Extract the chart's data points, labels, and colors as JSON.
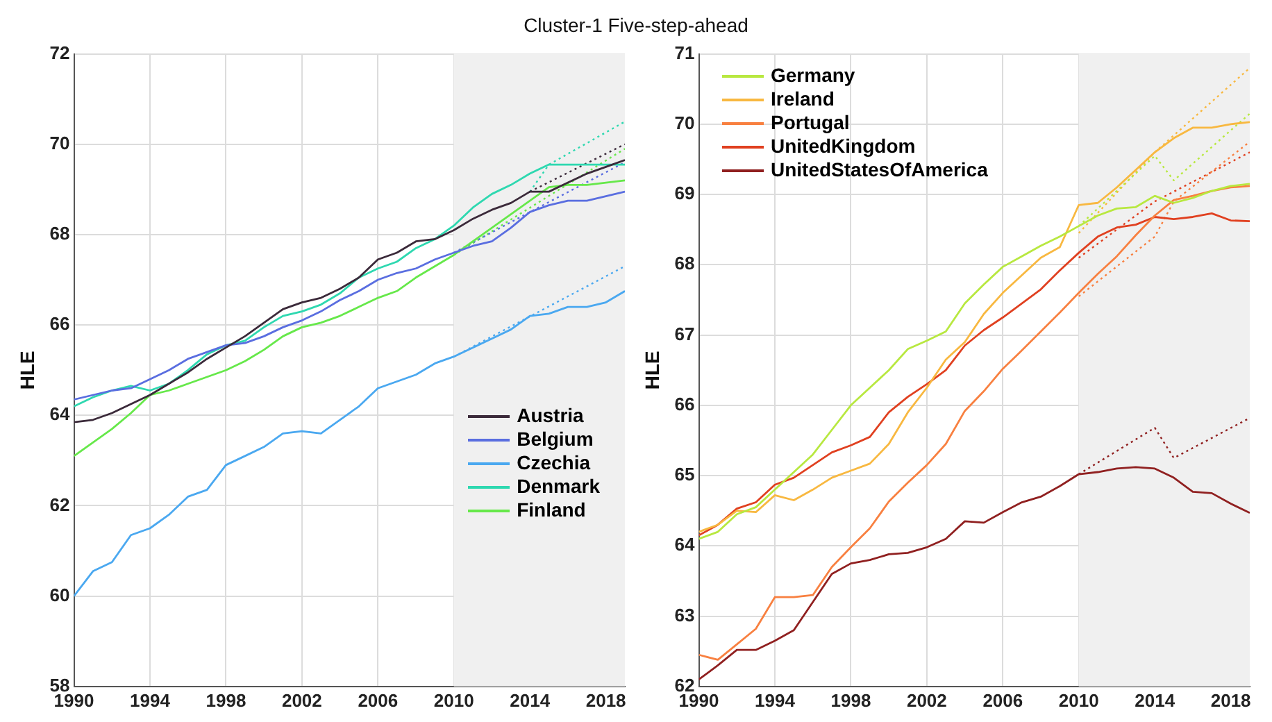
{
  "chart_data": [
    {
      "type": "line",
      "title": "Cluster-1 Five-step-ahead",
      "ylabel": "HLE",
      "x": [
        1990,
        1991,
        1992,
        1993,
        1994,
        1995,
        1996,
        1997,
        1998,
        1999,
        2000,
        2001,
        2002,
        2003,
        2004,
        2005,
        2006,
        2007,
        2008,
        2009,
        2010,
        2011,
        2012,
        2013,
        2014,
        2015,
        2016,
        2017,
        2018,
        2019
      ],
      "xlim": [
        1990,
        2019
      ],
      "xticks": [
        1990,
        1994,
        1998,
        2002,
        2006,
        2010,
        2014,
        2018
      ],
      "ylim": [
        58,
        72
      ],
      "yticks": [
        58,
        60,
        62,
        64,
        66,
        68,
        70,
        72
      ],
      "grid": true,
      "legend": "bottom right",
      "marker": "none",
      "bands": [
        {
          "axis": "x",
          "from": 2010,
          "to": 2019,
          "color": "#f0f0f0"
        }
      ],
      "series": [
        {
          "name": "Austria",
          "color": "#3b2a3a",
          "values": [
            63.85,
            63.9,
            64.05,
            64.25,
            64.45,
            64.7,
            64.95,
            65.25,
            65.5,
            65.75,
            66.05,
            66.35,
            66.5,
            66.6,
            66.8,
            67.05,
            67.45,
            67.6,
            67.85,
            67.9,
            68.1,
            68.35,
            68.55,
            68.7,
            68.95,
            68.95,
            69.15,
            69.35,
            69.5,
            69.65
          ]
        },
        {
          "name": "Belgium",
          "color": "#5a6ee0",
          "values": [
            64.35,
            64.45,
            64.55,
            64.6,
            64.8,
            65.0,
            65.25,
            65.4,
            65.55,
            65.6,
            65.75,
            65.95,
            66.1,
            66.3,
            66.55,
            66.75,
            67.0,
            67.15,
            67.25,
            67.45,
            67.6,
            67.75,
            67.85,
            68.15,
            68.5,
            68.65,
            68.75,
            68.75,
            68.85,
            68.95
          ]
        },
        {
          "name": "Czechia",
          "color": "#4aa8f0",
          "values": [
            60.0,
            60.55,
            60.75,
            61.35,
            61.5,
            61.8,
            62.2,
            62.35,
            62.9,
            63.1,
            63.3,
            63.6,
            63.65,
            63.6,
            63.9,
            64.2,
            64.6,
            64.75,
            64.9,
            65.15,
            65.3,
            65.5,
            65.7,
            65.9,
            66.2,
            66.25,
            66.4,
            66.4,
            66.5,
            66.75
          ]
        },
        {
          "name": "Denmark",
          "color": "#2ed8b0",
          "values": [
            64.2,
            64.4,
            64.55,
            64.65,
            64.55,
            64.7,
            65.0,
            65.35,
            65.55,
            65.65,
            65.95,
            66.2,
            66.3,
            66.45,
            66.7,
            67.05,
            67.25,
            67.4,
            67.7,
            67.9,
            68.2,
            68.6,
            68.9,
            69.1,
            69.35,
            69.55,
            69.55,
            69.55,
            69.55,
            69.55
          ]
        },
        {
          "name": "Finland",
          "color": "#66e84a",
          "values": [
            63.1,
            63.4,
            63.7,
            64.05,
            64.45,
            64.55,
            64.7,
            64.85,
            65.0,
            65.2,
            65.45,
            65.75,
            65.95,
            66.05,
            66.2,
            66.4,
            66.6,
            66.75,
            67.05,
            67.3,
            67.55,
            67.85,
            68.15,
            68.45,
            68.75,
            69.05,
            69.1,
            69.1,
            69.15,
            69.2
          ]
        },
        {
          "color": "#3b2a3a",
          "line_style": "dotted",
          "x": [
            2014,
            2019
          ],
          "values": [
            68.95,
            70.0
          ]
        },
        {
          "color": "#5a6ee0",
          "line_style": "dotted",
          "x": [
            2010,
            2014,
            2019
          ],
          "values": [
            67.6,
            68.5,
            69.6
          ]
        },
        {
          "color": "#4aa8f0",
          "line_style": "dotted",
          "x": [
            2010,
            2019
          ],
          "values": [
            65.3,
            67.3
          ]
        },
        {
          "color": "#2ed8b0",
          "line_style": "dotted",
          "x": [
            2014,
            2015,
            2019
          ],
          "values": [
            68.95,
            69.55,
            70.5
          ]
        },
        {
          "color": "#66e84a",
          "line_style": "dotted",
          "x": [
            2010,
            2019
          ],
          "values": [
            67.55,
            69.9
          ]
        }
      ]
    },
    {
      "type": "line",
      "ylabel": "HLE",
      "x": [
        1990,
        1991,
        1992,
        1993,
        1994,
        1995,
        1996,
        1997,
        1998,
        1999,
        2000,
        2001,
        2002,
        2003,
        2004,
        2005,
        2006,
        2007,
        2008,
        2009,
        2010,
        2011,
        2012,
        2013,
        2014,
        2015,
        2016,
        2017,
        2018,
        2019
      ],
      "xlim": [
        1990,
        2019
      ],
      "xticks": [
        1990,
        1994,
        1998,
        2002,
        2006,
        2010,
        2014,
        2018
      ],
      "ylim": [
        62,
        71
      ],
      "yticks": [
        62,
        63,
        64,
        65,
        66,
        67,
        68,
        69,
        70,
        71
      ],
      "grid": true,
      "legend": "top left",
      "marker": "none",
      "bands": [
        {
          "axis": "x",
          "from": 2010,
          "to": 2019,
          "color": "#f0f0f0"
        }
      ],
      "series": [
        {
          "name": "Germany",
          "color": "#b8e840",
          "values": [
            64.1,
            64.2,
            64.45,
            64.55,
            64.8,
            65.05,
            65.3,
            65.65,
            66.0,
            66.25,
            66.5,
            66.8,
            66.92,
            67.05,
            67.45,
            67.72,
            67.97,
            68.12,
            68.27,
            68.4,
            68.55,
            68.7,
            68.8,
            68.82,
            68.98,
            68.88,
            68.95,
            69.05,
            69.12,
            69.15
          ]
        },
        {
          "name": "Ireland",
          "color": "#f8b840",
          "values": [
            64.2,
            64.3,
            64.5,
            64.48,
            64.72,
            64.65,
            64.8,
            64.97,
            65.07,
            65.17,
            65.45,
            65.9,
            66.25,
            66.65,
            66.9,
            67.3,
            67.6,
            67.85,
            68.1,
            68.25,
            68.85,
            68.88,
            69.1,
            69.35,
            69.6,
            69.8,
            69.95,
            69.95,
            70.0,
            70.03
          ]
        },
        {
          "name": "Portugal",
          "color": "#f88040",
          "values": [
            62.45,
            62.38,
            62.6,
            62.82,
            63.27,
            63.27,
            63.3,
            63.7,
            63.98,
            64.25,
            64.63,
            64.9,
            65.15,
            65.45,
            65.92,
            66.2,
            66.52,
            66.78,
            67.05,
            67.32,
            67.6,
            67.87,
            68.12,
            68.42,
            68.7,
            68.92,
            68.98,
            69.05,
            69.1,
            69.12
          ]
        },
        {
          "name": "UnitedKingdom",
          "color": "#e04020",
          "values": [
            64.15,
            64.3,
            64.53,
            64.62,
            64.87,
            64.97,
            65.15,
            65.33,
            65.43,
            65.55,
            65.9,
            66.12,
            66.3,
            66.5,
            66.85,
            67.07,
            67.25,
            67.45,
            67.65,
            67.92,
            68.17,
            68.4,
            68.53,
            68.57,
            68.68,
            68.65,
            68.68,
            68.73,
            68.63,
            68.62
          ]
        },
        {
          "name": "UnitedStatesOfAmerica",
          "color": "#902020",
          "values": [
            62.1,
            62.3,
            62.52,
            62.52,
            62.65,
            62.8,
            63.2,
            63.6,
            63.75,
            63.8,
            63.88,
            63.9,
            63.98,
            64.1,
            64.35,
            64.33,
            64.48,
            64.62,
            64.7,
            64.85,
            65.02,
            65.05,
            65.1,
            65.12,
            65.1,
            64.97,
            64.77,
            64.75,
            64.6,
            64.47
          ]
        },
        {
          "color": "#b8e840",
          "line_style": "dotted",
          "x": [
            2010,
            2014,
            2015,
            2019
          ],
          "values": [
            68.55,
            69.55,
            69.2,
            70.15
          ]
        },
        {
          "color": "#f8b840",
          "line_style": "dotted",
          "x": [
            2010,
            2014,
            2019
          ],
          "values": [
            68.45,
            69.6,
            70.8
          ]
        },
        {
          "color": "#f88040",
          "line_style": "dotted",
          "x": [
            2010,
            2014,
            2015,
            2019
          ],
          "values": [
            67.55,
            68.4,
            68.9,
            69.75
          ]
        },
        {
          "color": "#e04020",
          "line_style": "dotted",
          "x": [
            2010,
            2014,
            2019
          ],
          "values": [
            68.1,
            68.9,
            69.6
          ]
        },
        {
          "color": "#902020",
          "line_style": "dotted",
          "x": [
            2010,
            2014,
            2015,
            2019
          ],
          "values": [
            65.02,
            65.68,
            65.25,
            65.82
          ]
        }
      ]
    }
  ]
}
